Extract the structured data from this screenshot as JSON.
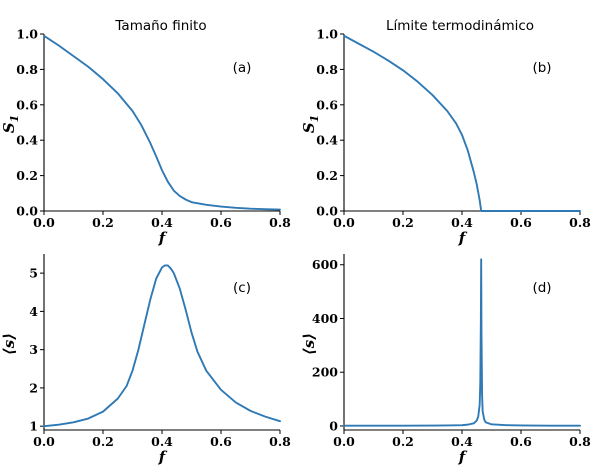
{
  "figure": {
    "column_titles": [
      "Tamaño finito",
      "Límite termodinámico"
    ]
  },
  "style": {
    "line_color": "#2f79b5"
  },
  "chart_data": [
    {
      "type": "line",
      "panel_label": "(a)",
      "xlabel": "f",
      "ylabel": "S1",
      "ylabel_base": "S",
      "ylabel_sub": "1",
      "xlim": [
        0.0,
        0.8
      ],
      "ylim": [
        0.0,
        1.0
      ],
      "xticks": [
        0.0,
        0.2,
        0.4,
        0.6,
        0.8
      ],
      "yticks": [
        0.0,
        0.2,
        0.4,
        0.6,
        0.8,
        1.0
      ],
      "xtick_labels": [
        "0.0",
        "0.2",
        "0.4",
        "0.6",
        "0.8"
      ],
      "ytick_labels": [
        "0.0",
        "0.2",
        "0.4",
        "0.6",
        "0.8",
        "1.0"
      ],
      "grid": false,
      "series": [
        {
          "x": [
            0.0,
            0.05,
            0.1,
            0.15,
            0.2,
            0.25,
            0.3,
            0.33,
            0.36,
            0.38,
            0.4,
            0.42,
            0.44,
            0.46,
            0.48,
            0.5,
            0.55,
            0.6,
            0.65,
            0.7,
            0.75,
            0.8
          ],
          "y": [
            0.99,
            0.935,
            0.875,
            0.815,
            0.745,
            0.665,
            0.565,
            0.485,
            0.385,
            0.31,
            0.23,
            0.165,
            0.115,
            0.085,
            0.065,
            0.05,
            0.035,
            0.025,
            0.018,
            0.013,
            0.01,
            0.008
          ]
        }
      ]
    },
    {
      "type": "line",
      "panel_label": "(b)",
      "xlabel": "f",
      "ylabel": "S1",
      "ylabel_base": "S",
      "ylabel_sub": "1",
      "xlim": [
        0.0,
        0.8
      ],
      "ylim": [
        0.0,
        1.0
      ],
      "xticks": [
        0.0,
        0.2,
        0.4,
        0.6,
        0.8
      ],
      "yticks": [
        0.0,
        0.2,
        0.4,
        0.6,
        0.8,
        1.0
      ],
      "xtick_labels": [
        "0.0",
        "0.2",
        "0.4",
        "0.6",
        "0.8"
      ],
      "ytick_labels": [
        "0.0",
        "0.2",
        "0.4",
        "0.6",
        "0.8",
        "1.0"
      ],
      "grid": false,
      "series": [
        {
          "x": [
            0.0,
            0.05,
            0.1,
            0.15,
            0.2,
            0.25,
            0.3,
            0.35,
            0.38,
            0.4,
            0.42,
            0.44,
            0.45,
            0.46,
            0.465,
            0.5,
            0.6,
            0.7,
            0.8
          ],
          "y": [
            0.99,
            0.945,
            0.9,
            0.85,
            0.795,
            0.73,
            0.655,
            0.565,
            0.495,
            0.43,
            0.34,
            0.22,
            0.15,
            0.06,
            0.0,
            0.0,
            0.0,
            0.0,
            0.0
          ]
        }
      ]
    },
    {
      "type": "line",
      "panel_label": "(c)",
      "xlabel": "f",
      "ylabel": "⟨s⟩",
      "xlim": [
        0.0,
        0.8
      ],
      "ylim": [
        0.9,
        5.5
      ],
      "xticks": [
        0.0,
        0.2,
        0.4,
        0.6,
        0.8
      ],
      "yticks": [
        1,
        2,
        3,
        4,
        5
      ],
      "xtick_labels": [
        "0.0",
        "0.2",
        "0.4",
        "0.6",
        "0.8"
      ],
      "ytick_labels": [
        "1",
        "2",
        "3",
        "4",
        "5"
      ],
      "grid": false,
      "series": [
        {
          "x": [
            0.0,
            0.05,
            0.1,
            0.15,
            0.2,
            0.25,
            0.28,
            0.3,
            0.32,
            0.34,
            0.36,
            0.38,
            0.4,
            0.41,
            0.42,
            0.43,
            0.44,
            0.46,
            0.48,
            0.5,
            0.52,
            0.55,
            0.6,
            0.65,
            0.7,
            0.75,
            0.8
          ],
          "y": [
            1.0,
            1.04,
            1.1,
            1.2,
            1.38,
            1.72,
            2.05,
            2.45,
            3.0,
            3.65,
            4.3,
            4.85,
            5.15,
            5.2,
            5.2,
            5.12,
            5.0,
            4.6,
            4.05,
            3.45,
            2.95,
            2.45,
            1.95,
            1.62,
            1.4,
            1.25,
            1.13
          ]
        }
      ]
    },
    {
      "type": "line",
      "panel_label": "(d)",
      "xlabel": "f",
      "ylabel": "⟨s⟩",
      "xlim": [
        0.0,
        0.8
      ],
      "ylim": [
        -15,
        640
      ],
      "xticks": [
        0.0,
        0.2,
        0.4,
        0.6,
        0.8
      ],
      "yticks": [
        0,
        200,
        400,
        600
      ],
      "xtick_labels": [
        "0.0",
        "0.2",
        "0.4",
        "0.6",
        "0.8"
      ],
      "ytick_labels": [
        "0",
        "200",
        "400",
        "600"
      ],
      "grid": false,
      "series": [
        {
          "x": [
            0.0,
            0.1,
            0.2,
            0.3,
            0.35,
            0.4,
            0.42,
            0.44,
            0.45,
            0.455,
            0.46,
            0.462,
            0.464,
            0.465,
            0.466,
            0.468,
            0.47,
            0.475,
            0.48,
            0.5,
            0.55,
            0.6,
            0.7,
            0.8
          ],
          "y": [
            1,
            1,
            1.2,
            1.5,
            2,
            3,
            5,
            10,
            20,
            35,
            80,
            160,
            400,
            620,
            350,
            120,
            55,
            25,
            14,
            6,
            3,
            2,
            1.2,
            1
          ]
        }
      ]
    }
  ]
}
